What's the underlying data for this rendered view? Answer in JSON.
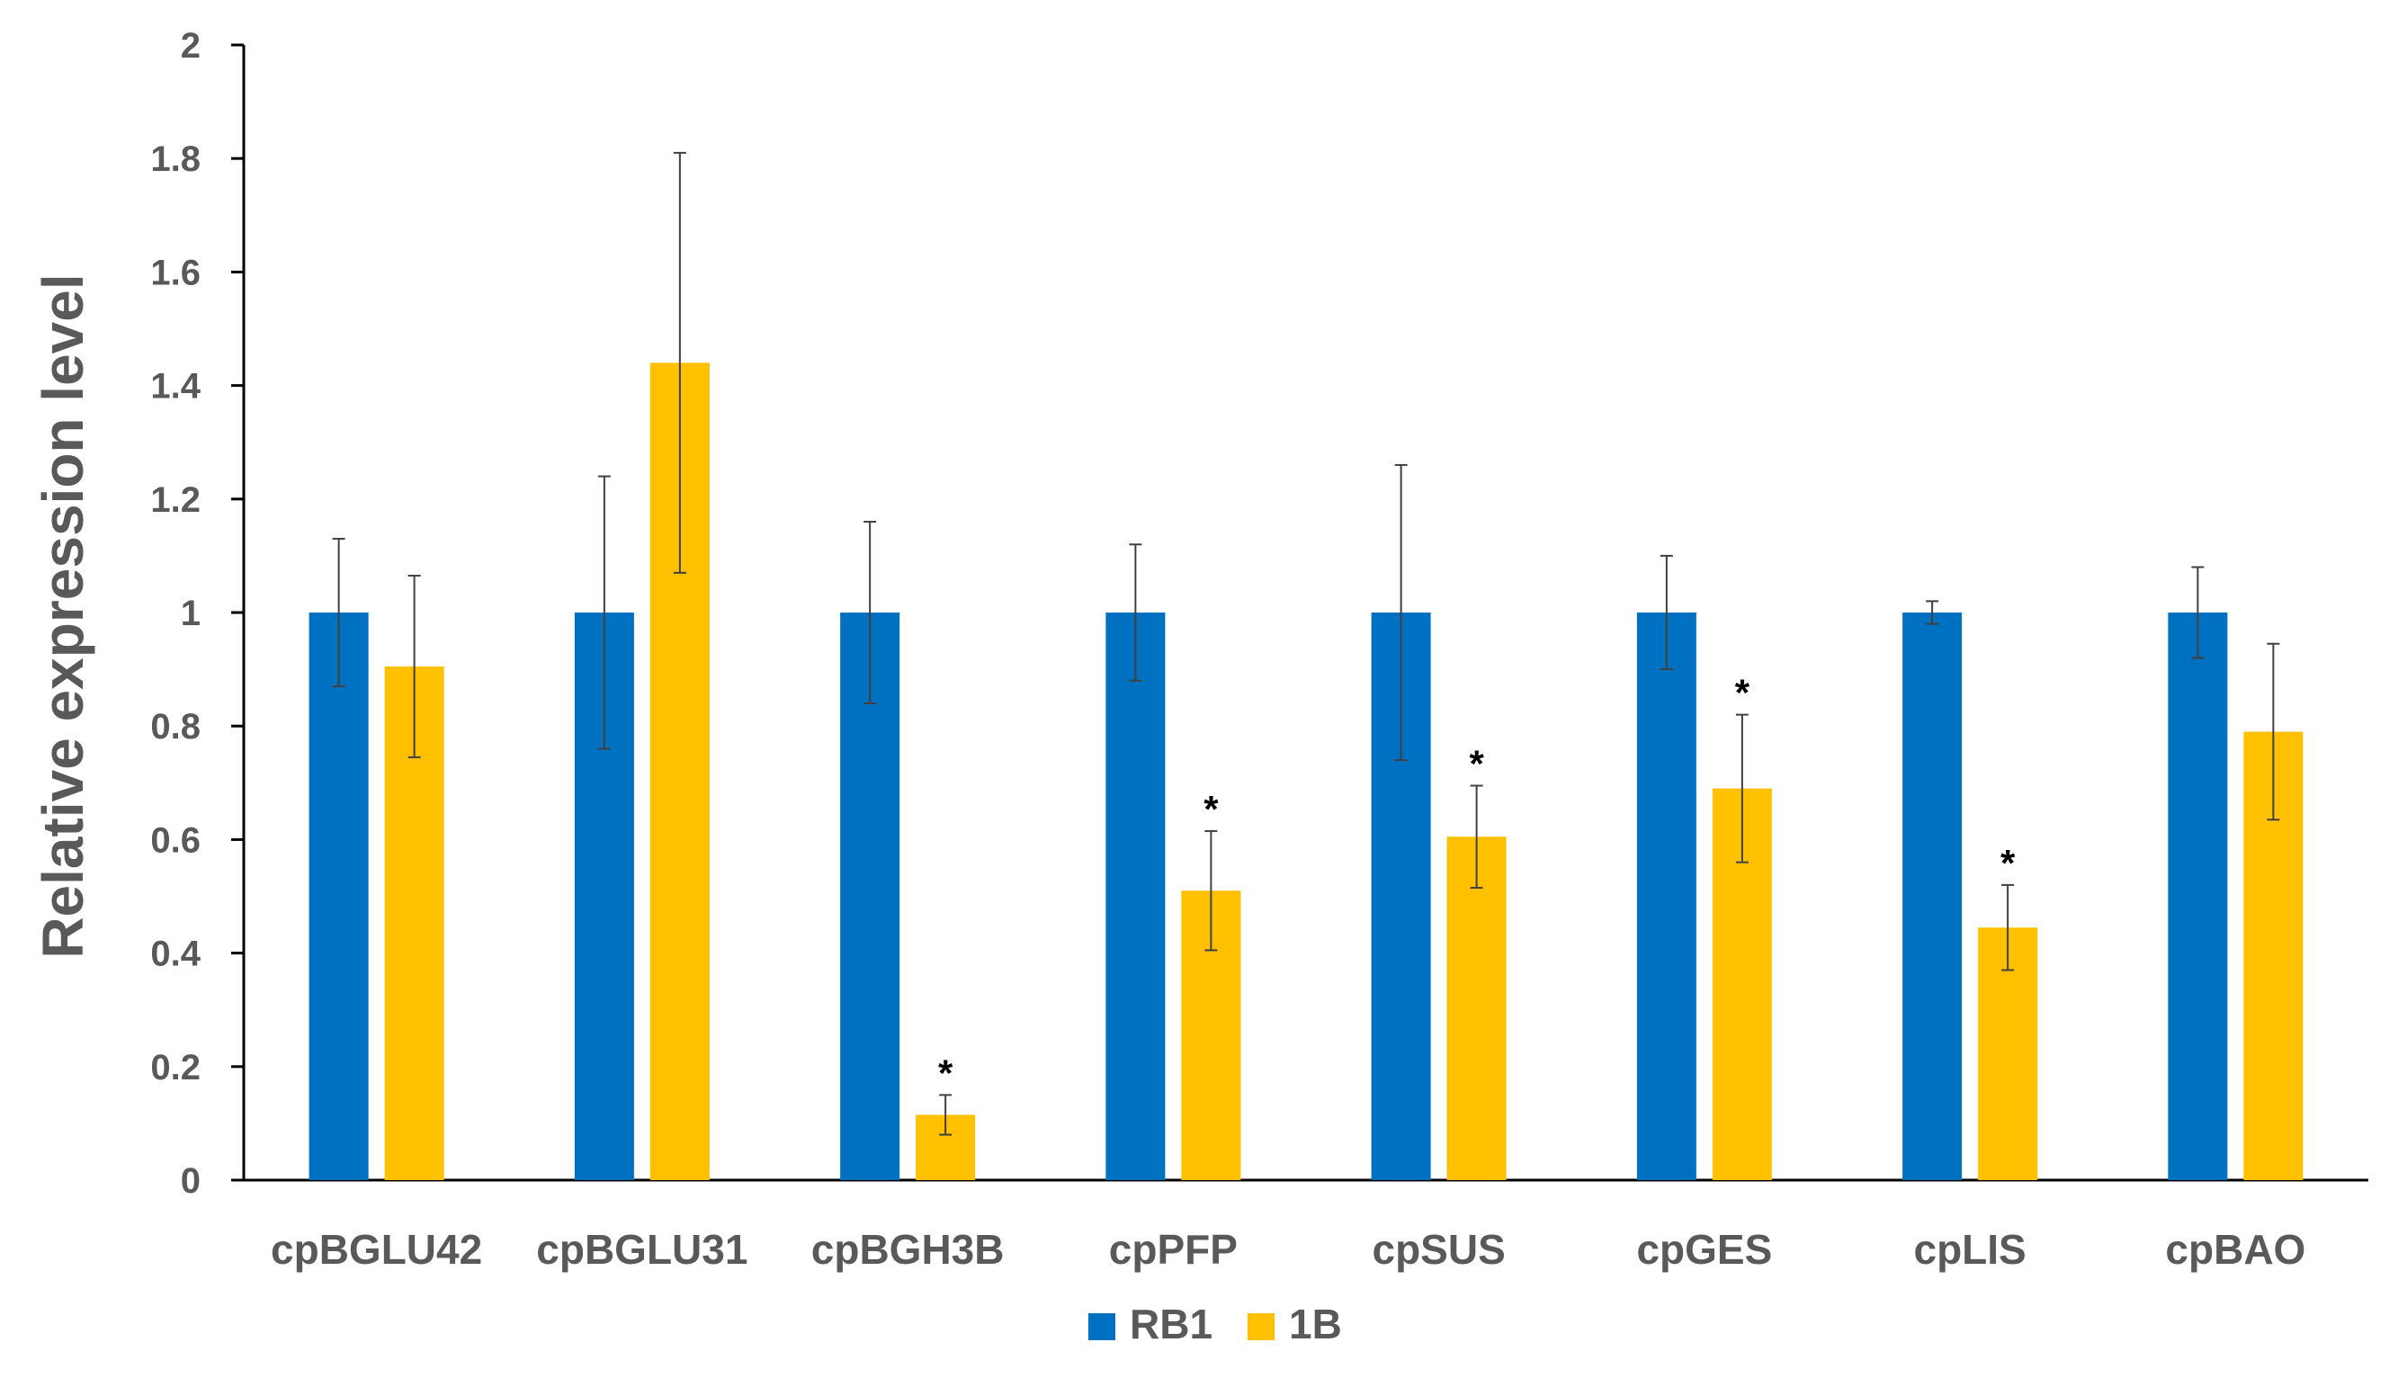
{
  "chart_data": {
    "type": "bar",
    "title": "",
    "xlabel": "",
    "ylabel": "Relative expression level",
    "ylim": [
      0,
      2
    ],
    "yticks": [
      "0",
      "0.2",
      "0.4",
      "0.6",
      "0.8",
      "1",
      "1.2",
      "1.4",
      "1.6",
      "1.8",
      "2"
    ],
    "grid": false,
    "legend_position": "bottom",
    "categories": [
      "cpBGLU42",
      "cpBGLU31",
      "cpBGH3B",
      "cpPFP",
      "cpSUS",
      "cpGES",
      "cpLIS",
      "cpBAO"
    ],
    "series": [
      {
        "name": "RB1",
        "color": "#0070C0",
        "values": [
          1,
          1,
          1,
          1,
          1,
          1,
          1,
          1
        ],
        "error": [
          0.13,
          0.24,
          0.16,
          0.12,
          0.26,
          0.1,
          0.02,
          0.08
        ],
        "significant": [
          "",
          "",
          "",
          "",
          "",
          "",
          "",
          ""
        ]
      },
      {
        "name": "1B",
        "color": "#FFC000",
        "values": [
          0.905,
          1.44,
          0.115,
          0.51,
          0.605,
          0.69,
          0.445,
          0.79
        ],
        "error": [
          0.16,
          0.37,
          0.035,
          0.105,
          0.09,
          0.13,
          0.075,
          0.155
        ],
        "significant": [
          "",
          "",
          "*",
          "*",
          "*",
          "*",
          "*",
          ""
        ]
      }
    ]
  }
}
